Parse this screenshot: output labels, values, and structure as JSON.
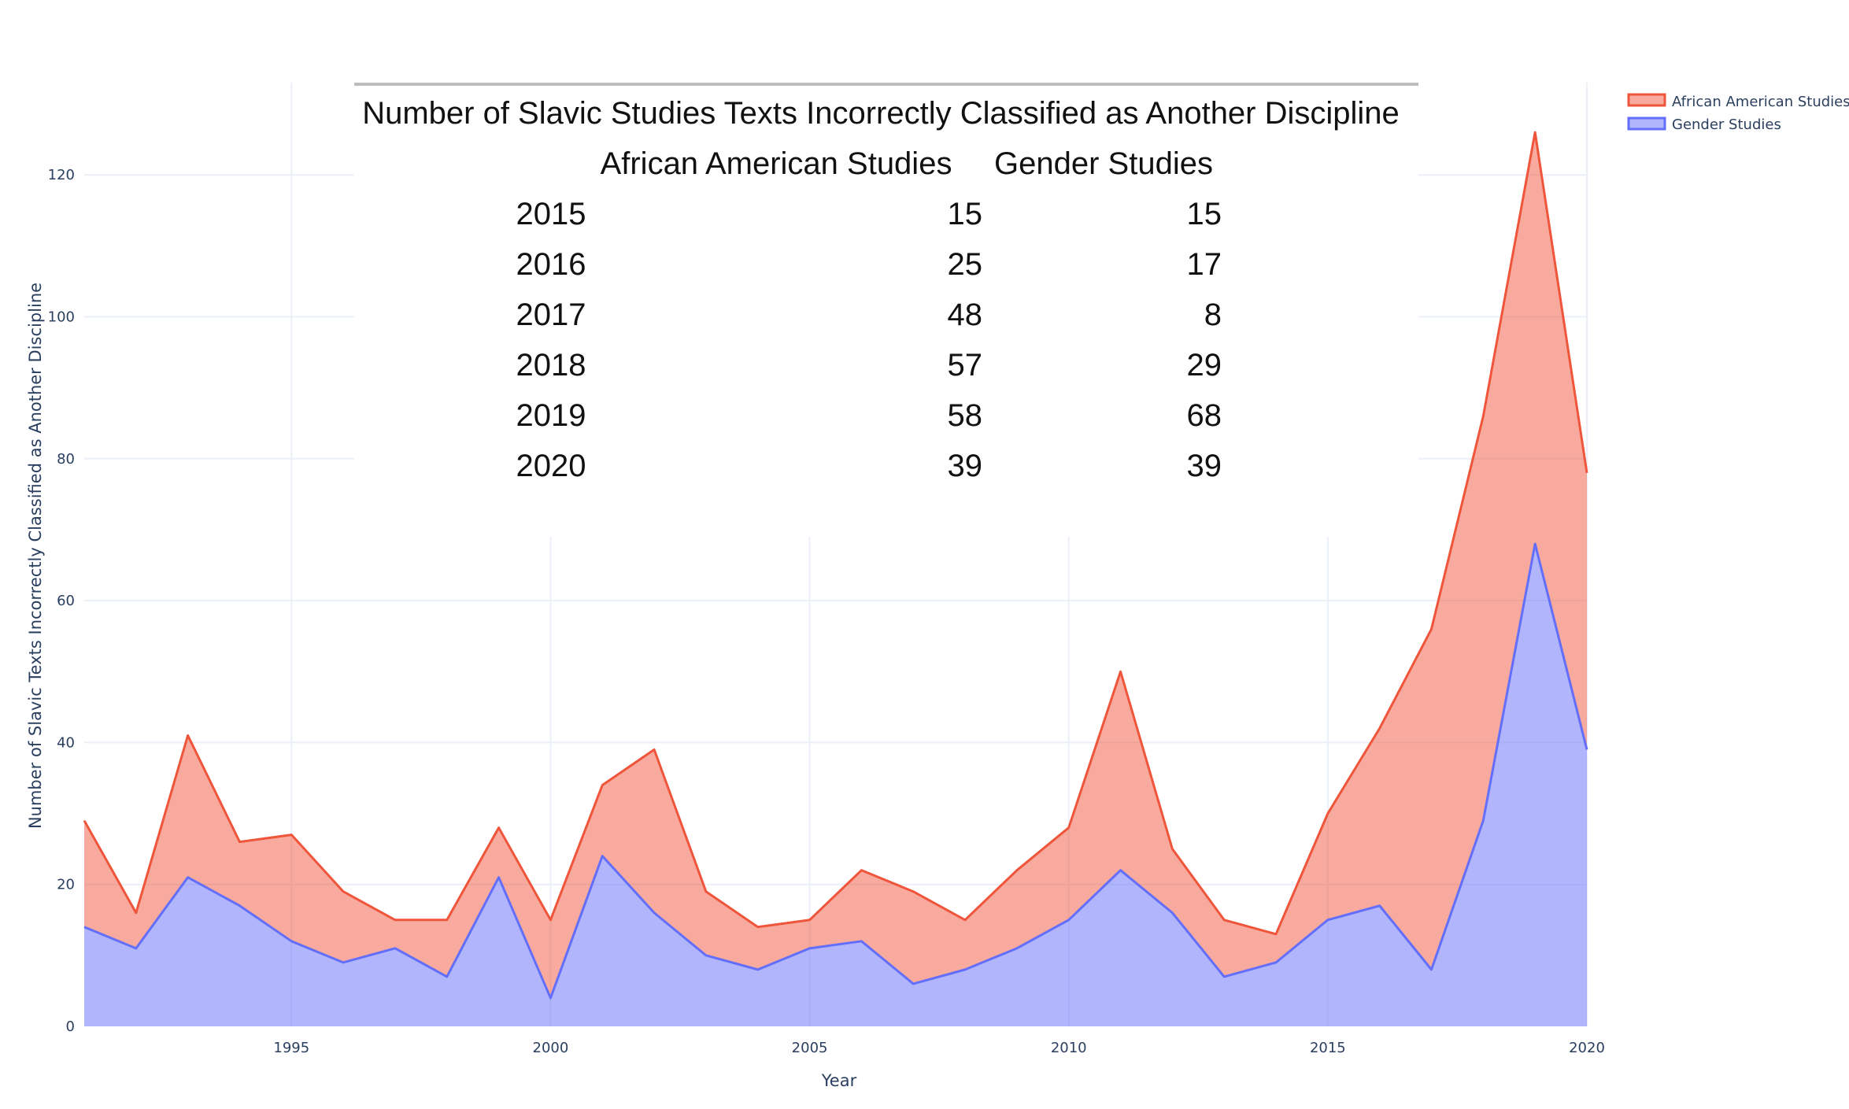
{
  "colors": {
    "african_american_line": "#ef553b",
    "african_american_fill": "rgba(239,85,59,0.5)",
    "gender_line": "#636efa",
    "gender_fill": "rgba(99,110,250,0.5)",
    "grid": "#ebf0f8",
    "text": "#2a3f5f"
  },
  "chart_data": [
    {
      "type": "area",
      "stacked": true,
      "xlabel": "Year",
      "ylabel": "Number of Slavic Texts Incorrectly Classified as Another Discipline",
      "xlim": [
        1991,
        2020
      ],
      "ylim": [
        0,
        133
      ],
      "x_ticks": [
        1995,
        2000,
        2005,
        2010,
        2015,
        2020
      ],
      "y_ticks": [
        0,
        20,
        40,
        60,
        80,
        100,
        120
      ],
      "grid": true,
      "legend_position": "top-right",
      "x": [
        1991,
        1992,
        1993,
        1994,
        1995,
        1996,
        1997,
        1998,
        1999,
        2000,
        2001,
        2002,
        2003,
        2004,
        2005,
        2006,
        2007,
        2008,
        2009,
        2010,
        2011,
        2012,
        2013,
        2014,
        2015,
        2016,
        2017,
        2018,
        2019,
        2020
      ],
      "series": [
        {
          "name": "Gender Studies",
          "values": [
            14,
            11,
            21,
            17,
            12,
            9,
            11,
            7,
            21,
            4,
            24,
            16,
            10,
            8,
            11,
            12,
            6,
            8,
            11,
            15,
            22,
            16,
            7,
            9,
            15,
            17,
            8,
            29,
            68,
            39
          ]
        },
        {
          "name": "African American Studies",
          "values": [
            15,
            5,
            20,
            9,
            15,
            10,
            4,
            8,
            7,
            11,
            10,
            23,
            9,
            6,
            4,
            10,
            13,
            7,
            11,
            13,
            28,
            9,
            8,
            4,
            15,
            25,
            48,
            57,
            58,
            39
          ],
          "stacked_totals": [
            29,
            16,
            41,
            26,
            27,
            19,
            15,
            15,
            28,
            15,
            34,
            39,
            19,
            14,
            15,
            22,
            19,
            15,
            22,
            28,
            50,
            25,
            15,
            13,
            30,
            42,
            56,
            86,
            126,
            78
          ]
        }
      ]
    },
    {
      "type": "table",
      "title": "Number of Slavic Studies Texts Incorrectly Classified as Another Discipline",
      "columns": [
        "African American Studies",
        "Gender Studies"
      ],
      "rows": [
        {
          "year": "2015",
          "african_american": "15",
          "gender": "15"
        },
        {
          "year": "2016",
          "african_american": "25",
          "gender": "17"
        },
        {
          "year": "2017",
          "african_american": "48",
          "gender": "8"
        },
        {
          "year": "2018",
          "african_american": "57",
          "gender": "29"
        },
        {
          "year": "2019",
          "african_american": "58",
          "gender": "68"
        },
        {
          "year": "2020",
          "african_american": "39",
          "gender": "39"
        }
      ]
    }
  ],
  "legend": {
    "items": [
      {
        "label": "African American Studies",
        "color_key": "african_american_line"
      },
      {
        "label": "Gender Studies",
        "color_key": "gender_line"
      }
    ]
  }
}
